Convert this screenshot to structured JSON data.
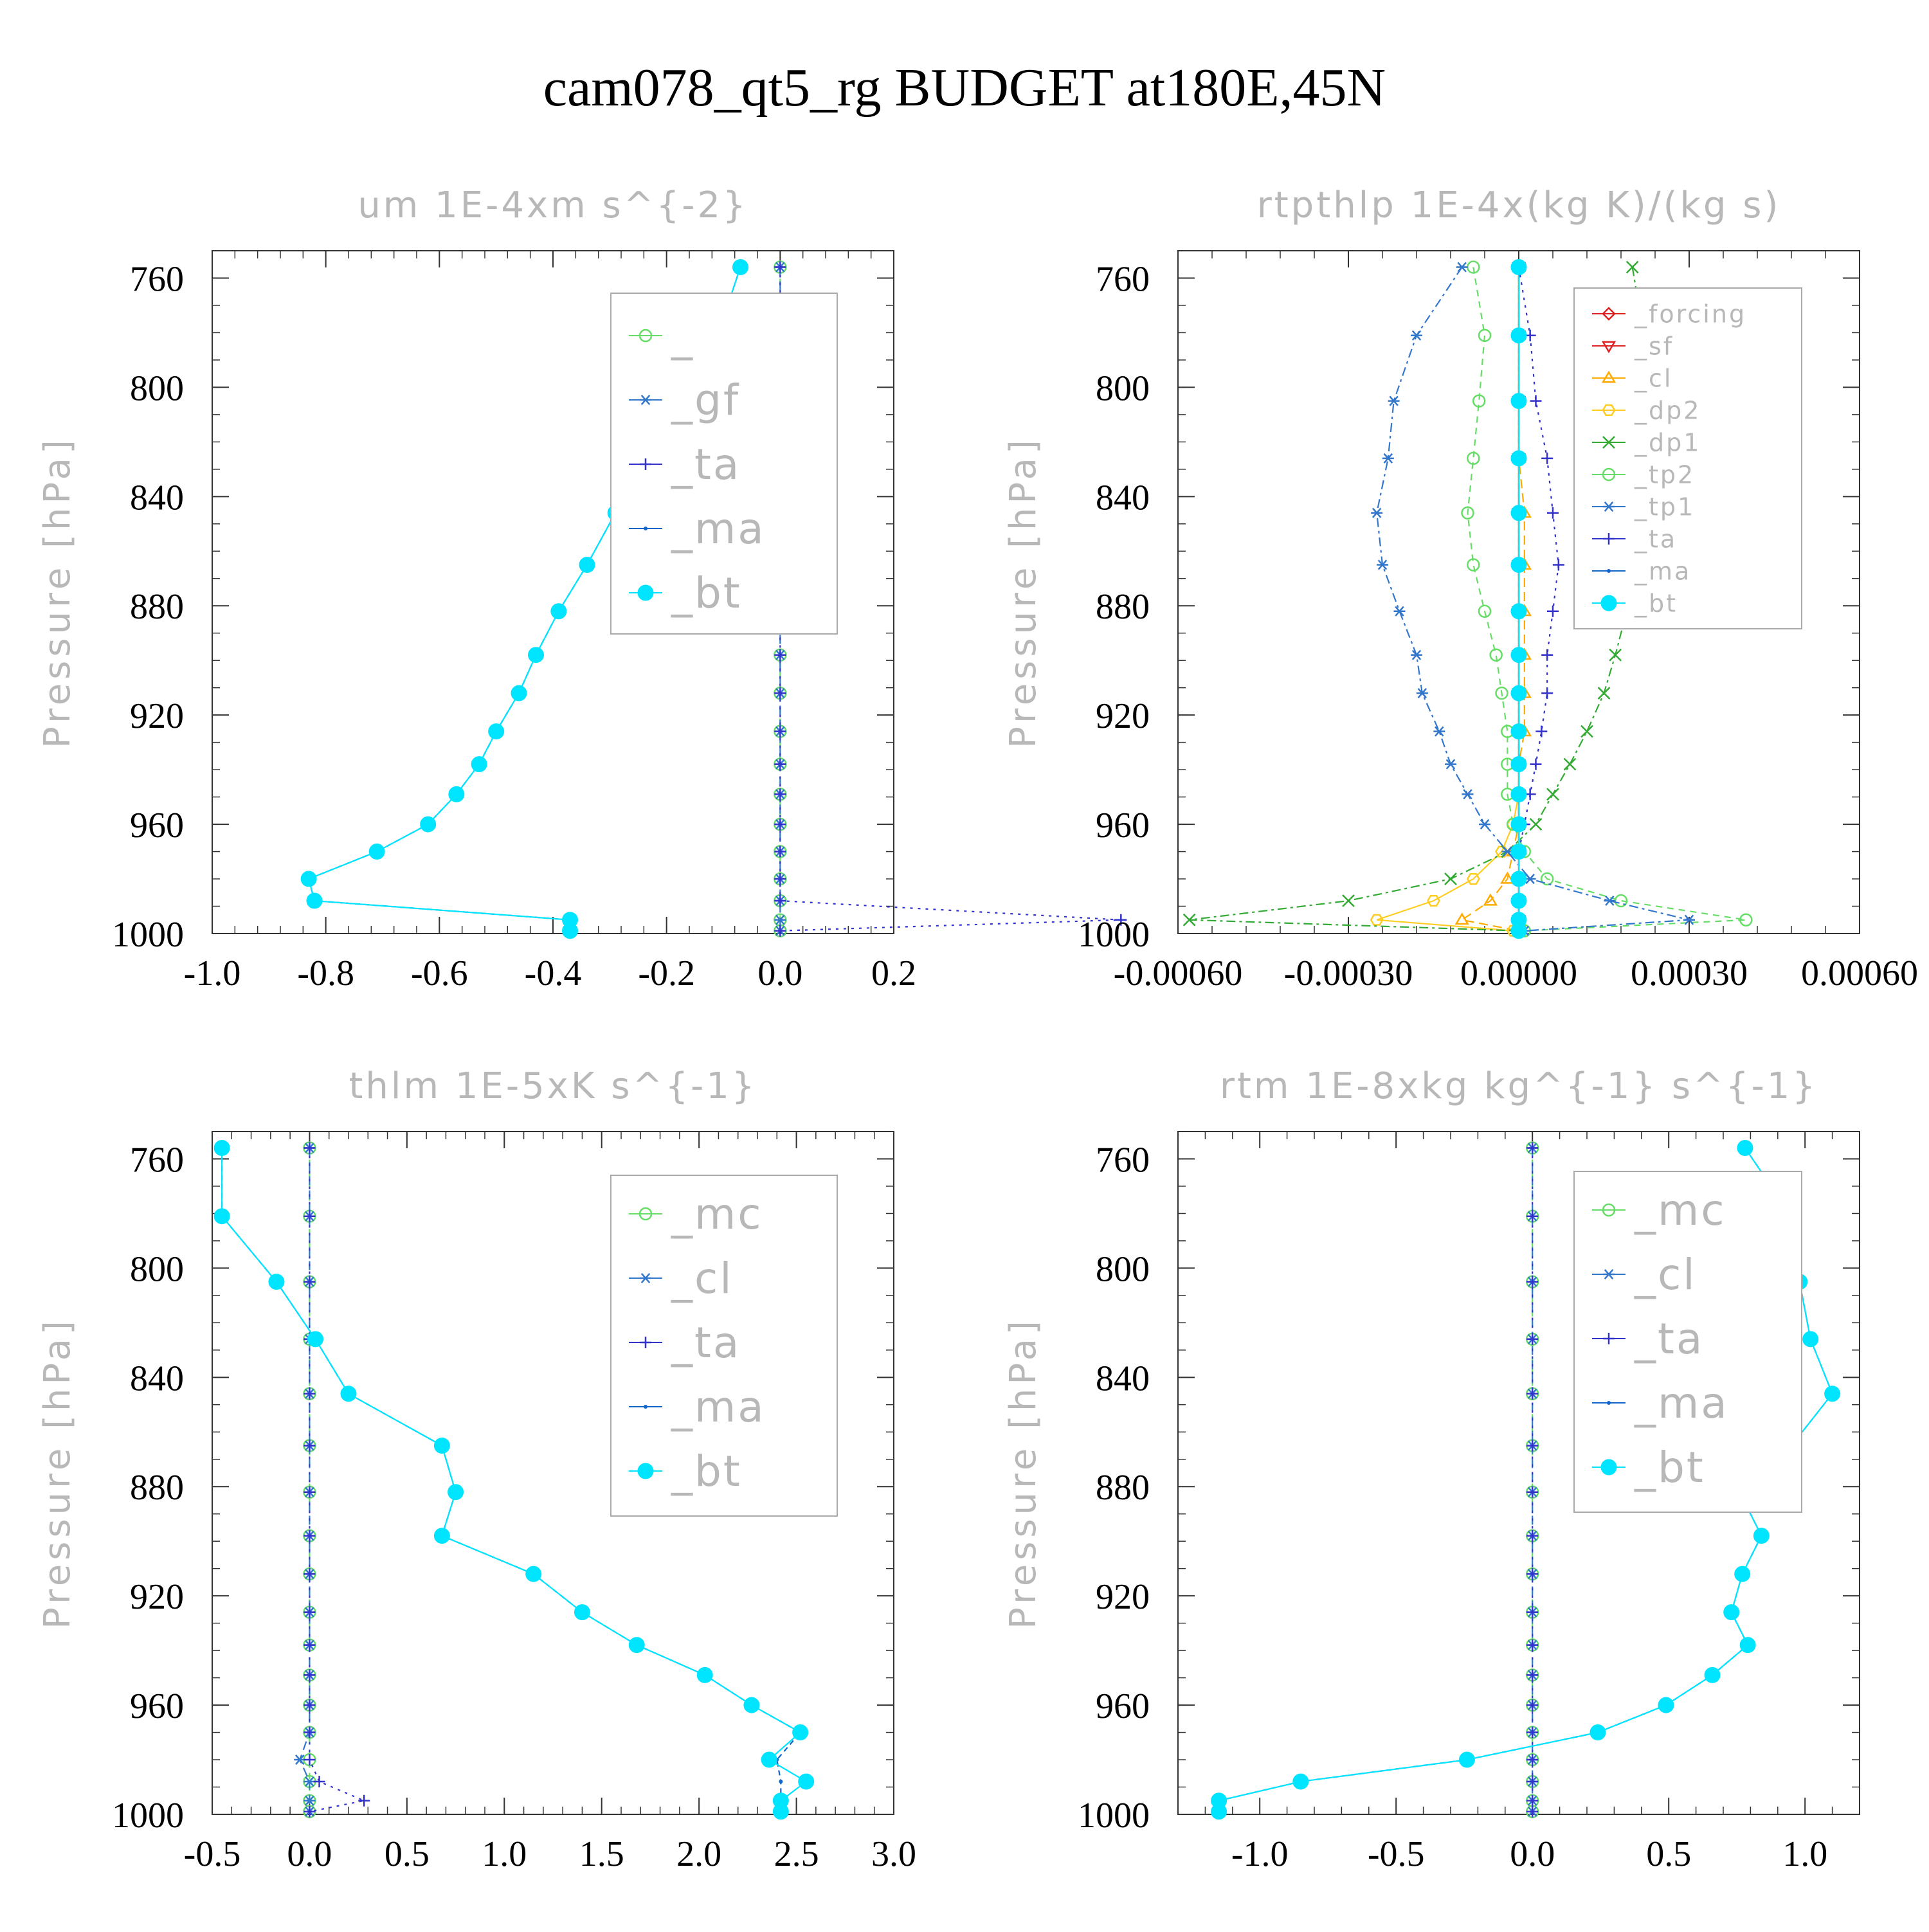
{
  "figure_title": "cam078_qt5_rg  BUDGET at180E,45N",
  "chart_data": [
    {
      "type": "line",
      "title": "um   1E-4xm s^{-2}",
      "ylabel": "Pressure [hPa]",
      "ylim": [
        1000,
        750
      ],
      "y_ticks": [
        760,
        800,
        840,
        880,
        920,
        960,
        1000
      ],
      "xlim": [
        -1.0,
        0.2
      ],
      "x_ticks": [
        -1.0,
        -0.8,
        -0.6,
        -0.4,
        -0.2,
        0.0,
        0.2
      ],
      "x_tick_labels": [
        "-1.0",
        "-0.8",
        "-0.6",
        "-0.4",
        "-0.2",
        "0.0",
        "0.2"
      ],
      "pressure": [
        756,
        781,
        805,
        826,
        846,
        865,
        882,
        898,
        912,
        926,
        938,
        949,
        960,
        970,
        980,
        988,
        995,
        999
      ],
      "legend": {
        "position": "upper-right",
        "entries": [
          "_",
          "_gf",
          "_ta",
          "_ma",
          "_bt"
        ]
      },
      "series": [
        {
          "name": "_",
          "color": "#66dd66",
          "marker": "circle",
          "values": [
            0,
            0,
            0,
            0,
            0,
            0,
            0,
            0,
            0,
            0,
            0,
            0,
            0,
            0,
            0,
            0,
            0,
            0
          ]
        },
        {
          "name": "_gf",
          "color": "#3377cc",
          "marker": "asterisk",
          "values": [
            0,
            0,
            0,
            0,
            0,
            0,
            0,
            0,
            0,
            0,
            0,
            0,
            0,
            0,
            0,
            0,
            0,
            0
          ]
        },
        {
          "name": "_ta",
          "color": "#3333cc",
          "marker": "plus",
          "values": [
            0,
            0,
            0,
            0,
            0,
            0,
            0,
            0,
            0,
            0,
            0,
            0,
            0,
            0,
            0,
            0,
            0.6,
            0
          ]
        },
        {
          "name": "_ma",
          "color": "#1166cc",
          "marker": "dot",
          "values": [
            -0.07,
            -0.11,
            -0.17,
            -0.24,
            -0.29,
            -0.34,
            -0.39,
            -0.43,
            -0.46,
            -0.5,
            -0.53,
            -0.57,
            -0.62,
            -0.71,
            -0.83,
            -0.82,
            -0.37,
            -0.37
          ]
        },
        {
          "name": "_bt",
          "color": "#00e5ff",
          "marker": "filled-circle",
          "values": [
            -0.07,
            -0.11,
            -0.17,
            -0.24,
            -0.29,
            -0.34,
            -0.39,
            -0.43,
            -0.46,
            -0.5,
            -0.53,
            -0.57,
            -0.62,
            -0.71,
            -0.83,
            -0.82,
            -0.37,
            -0.37
          ]
        }
      ]
    },
    {
      "type": "line",
      "title": "rtpthlp   1E-4x(kg K)/(kg s)",
      "ylabel": "Pressure [hPa]",
      "ylim": [
        1000,
        750
      ],
      "y_ticks": [
        760,
        800,
        840,
        880,
        920,
        960,
        1000
      ],
      "xlim": [
        -0.0006,
        0.0006
      ],
      "x_ticks": [
        -0.0006,
        -0.0003,
        0.0,
        0.0003,
        0.0006
      ],
      "x_tick_labels": [
        "-0.00060",
        "-0.00030",
        "0.00000",
        "0.00030",
        "0.00060"
      ],
      "pressure": [
        756,
        781,
        805,
        826,
        846,
        865,
        882,
        898,
        912,
        926,
        938,
        949,
        960,
        970,
        980,
        988,
        995,
        999
      ],
      "legend": {
        "position": "upper-right",
        "entries": [
          "_forcing",
          "_sf",
          "_cl",
          "_dp2",
          "_dp1",
          "_tp2",
          "_tp1",
          "_ta",
          "_ma",
          "_bt"
        ]
      },
      "series": [
        {
          "name": "_forcing",
          "color": "#dd2222",
          "marker": "diamond",
          "values": [
            0,
            0,
            0,
            0,
            0,
            0,
            0,
            0,
            0,
            0,
            0,
            0,
            0,
            0,
            0,
            0,
            0,
            0
          ]
        },
        {
          "name": "_sf",
          "color": "#dd2222",
          "marker": "triangle-down",
          "values": [
            0,
            0,
            0,
            0,
            0,
            0,
            0,
            0,
            0,
            0,
            0,
            0,
            0,
            0,
            0,
            0,
            0,
            0
          ]
        },
        {
          "name": "_cl",
          "color": "#ffaa00",
          "marker": "triangle-up",
          "values": [
            0,
            0,
            0,
            0,
            1e-05,
            1e-05,
            1e-05,
            1e-05,
            1e-05,
            1e-05,
            0,
            0,
            0,
            -1e-05,
            -2e-05,
            -5e-05,
            -0.0001,
            0
          ]
        },
        {
          "name": "_dp2",
          "color": "#ffcc22",
          "marker": "hexagon",
          "values": [
            0,
            0,
            0,
            0,
            0,
            0,
            0,
            0,
            0,
            0,
            0,
            0,
            -1e-05,
            -3e-05,
            -8e-05,
            -0.00015,
            -0.00025,
            -1e-05
          ]
        },
        {
          "name": "_dp1",
          "color": "#33aa33",
          "marker": "x",
          "values": [
            0.0002,
            0.00022,
            0.00023,
            0.00022,
            0.00021,
            0.0002,
            0.00019,
            0.00017,
            0.00015,
            0.00012,
            9e-05,
            6e-05,
            3e-05,
            -2e-05,
            -0.00012,
            -0.0003,
            -0.00058,
            0
          ]
        },
        {
          "name": "_tp2",
          "color": "#66dd66",
          "marker": "circle",
          "values": [
            -8e-05,
            -6e-05,
            -7e-05,
            -8e-05,
            -9e-05,
            -8e-05,
            -6e-05,
            -4e-05,
            -3e-05,
            -2e-05,
            -2e-05,
            -2e-05,
            -1e-05,
            1e-05,
            5e-05,
            0.00018,
            0.0004,
            1e-05
          ]
        },
        {
          "name": "_tp1",
          "color": "#3377cc",
          "marker": "asterisk",
          "values": [
            -0.0001,
            -0.00018,
            -0.00022,
            -0.00023,
            -0.00025,
            -0.00024,
            -0.00021,
            -0.00018,
            -0.00017,
            -0.00014,
            -0.00012,
            -9e-05,
            -6e-05,
            -2e-05,
            2e-05,
            0.00016,
            0.0003,
            1e-05
          ]
        },
        {
          "name": "_ta",
          "color": "#3333cc",
          "marker": "plus",
          "values": [
            0,
            2e-05,
            3e-05,
            5e-05,
            6e-05,
            7e-05,
            6e-05,
            5e-05,
            5e-05,
            4e-05,
            3e-05,
            2e-05,
            1e-05,
            0,
            0,
            0,
            0,
            0
          ]
        },
        {
          "name": "_ma",
          "color": "#1166cc",
          "marker": "dot",
          "values": [
            0,
            0,
            0,
            0,
            0,
            0,
            0,
            0,
            0,
            0,
            0,
            0,
            0,
            0,
            0,
            0,
            0,
            0
          ]
        },
        {
          "name": "_bt",
          "color": "#00e5ff",
          "marker": "filled-circle",
          "values": [
            0,
            0,
            0,
            0,
            0,
            0,
            0,
            0,
            0,
            0,
            0,
            0,
            0,
            0,
            0,
            0,
            0,
            0
          ]
        }
      ]
    },
    {
      "type": "line",
      "title": "thlm   1E-5xK s^{-1}",
      "ylabel": "Pressure [hPa]",
      "ylim": [
        1000,
        750
      ],
      "y_ticks": [
        760,
        800,
        840,
        880,
        920,
        960,
        1000
      ],
      "xlim": [
        -0.5,
        3.0
      ],
      "x_ticks": [
        -0.5,
        0.0,
        0.5,
        1.0,
        1.5,
        2.0,
        2.5,
        3.0
      ],
      "x_tick_labels": [
        "-0.5",
        "0.0",
        "0.5",
        "1.0",
        "1.5",
        "2.0",
        "2.5",
        "3.0"
      ],
      "pressure": [
        756,
        781,
        805,
        826,
        846,
        865,
        882,
        898,
        912,
        926,
        938,
        949,
        960,
        970,
        980,
        988,
        995,
        999
      ],
      "legend": {
        "position": "upper-right",
        "entries": [
          "_mc",
          "_cl",
          "_ta",
          "_ma",
          "_bt"
        ]
      },
      "series": [
        {
          "name": "_mc",
          "color": "#66dd66",
          "marker": "circle",
          "values": [
            0,
            0,
            0,
            0,
            0,
            0,
            0,
            0,
            0,
            0,
            0,
            0,
            0,
            0,
            0,
            0,
            0,
            0
          ]
        },
        {
          "name": "_cl",
          "color": "#3377cc",
          "marker": "asterisk",
          "values": [
            0,
            0,
            0,
            0,
            0,
            0,
            0,
            0,
            0,
            0,
            0,
            0,
            0,
            0,
            -0.05,
            0,
            0,
            0
          ]
        },
        {
          "name": "_ta",
          "color": "#3333cc",
          "marker": "plus",
          "values": [
            0,
            0,
            0,
            0,
            0,
            0,
            0,
            0,
            0,
            0,
            0,
            0,
            0,
            0,
            0,
            0.05,
            0.28,
            0
          ]
        },
        {
          "name": "_ma",
          "color": "#1166cc",
          "marker": "dot",
          "values": [
            -0.45,
            -0.45,
            -0.17,
            0.03,
            0.2,
            0.68,
            0.75,
            0.68,
            1.15,
            1.4,
            1.68,
            2.03,
            2.27,
            2.52,
            2.4,
            2.42,
            2.42,
            2.42
          ]
        },
        {
          "name": "_bt",
          "color": "#00e5ff",
          "marker": "filled-circle",
          "values": [
            -0.45,
            -0.45,
            -0.17,
            0.03,
            0.2,
            0.68,
            0.75,
            0.68,
            1.15,
            1.4,
            1.68,
            2.03,
            2.27,
            2.52,
            2.36,
            2.55,
            2.42,
            2.42
          ]
        }
      ]
    },
    {
      "type": "line",
      "title": "rtm   1E-8xkg kg^{-1} s^{-1}",
      "ylabel": "Pressure [hPa]",
      "ylim": [
        1000,
        750
      ],
      "y_ticks": [
        760,
        800,
        840,
        880,
        920,
        960,
        1000
      ],
      "xlim": [
        -1.3,
        1.2
      ],
      "x_ticks": [
        -1.0,
        -0.5,
        0.0,
        0.5,
        1.0
      ],
      "x_tick_labels": [
        "-1.0",
        "-0.5",
        "0.0",
        "0.5",
        "1.0"
      ],
      "pressure": [
        756,
        781,
        805,
        826,
        846,
        865,
        882,
        898,
        912,
        926,
        938,
        949,
        960,
        970,
        980,
        988,
        995,
        999
      ],
      "legend": {
        "position": "upper-right",
        "entries": [
          "_mc",
          "_cl",
          "_ta",
          "_ma",
          "_bt"
        ]
      },
      "series": [
        {
          "name": "_mc",
          "color": "#66dd66",
          "marker": "circle",
          "values": [
            0,
            0,
            0,
            0,
            0,
            0,
            0,
            0,
            0,
            0,
            0,
            0,
            0,
            0,
            0,
            0,
            0,
            0
          ]
        },
        {
          "name": "_cl",
          "color": "#3377cc",
          "marker": "asterisk",
          "values": [
            0,
            0,
            0,
            0,
            0,
            0,
            0,
            0,
            0,
            0,
            0,
            0,
            0,
            0,
            0,
            0,
            0,
            0
          ]
        },
        {
          "name": "_ta",
          "color": "#3333cc",
          "marker": "plus",
          "values": [
            0,
            0,
            0,
            0,
            0,
            0,
            0,
            0,
            0,
            0,
            0,
            0,
            0,
            0,
            0,
            0,
            0,
            0
          ]
        },
        {
          "name": "_ma",
          "color": "#1166cc",
          "marker": "dot",
          "values": [
            0.78,
            0.95,
            0.98,
            1.02,
            1.1,
            0.95,
            0.76,
            0.84,
            0.77,
            0.73,
            0.79,
            0.66,
            0.49,
            0.24,
            -0.24,
            -0.85,
            -1.15,
            -1.15
          ]
        },
        {
          "name": "_bt",
          "color": "#00e5ff",
          "marker": "filled-circle",
          "values": [
            0.78,
            0.95,
            0.98,
            1.02,
            1.1,
            0.95,
            0.76,
            0.84,
            0.77,
            0.73,
            0.79,
            0.66,
            0.49,
            0.24,
            -0.24,
            -0.85,
            -1.15,
            -1.15
          ]
        }
      ]
    }
  ]
}
